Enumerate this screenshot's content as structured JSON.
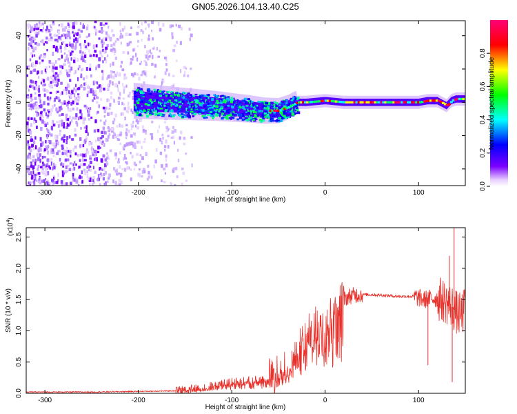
{
  "title": "GN05.2026.104.13.40.C25",
  "chart_data": [
    {
      "type": "heatmap",
      "xlabel": "Height of straight line (km)",
      "ylabel": "Frequency (Hz)",
      "xlim": [
        -320,
        150
      ],
      "ylim": [
        -50,
        49
      ],
      "xticks": [
        -300,
        -200,
        -100,
        0,
        100
      ],
      "yticks": [
        -40,
        -20,
        0,
        20,
        40
      ],
      "colorbar": {
        "label": "Normalized spectral amplitude",
        "range": [
          0,
          1
        ],
        "ticks": [
          0.0,
          0.2,
          0.4,
          0.6,
          0.8
        ],
        "tick_labels": [
          "0.0",
          "0.2",
          "0.4",
          "0.6",
          "0.8"
        ],
        "colors": [
          "#ffffff",
          "#7b00ff",
          "#0000ff",
          "#00ffff",
          "#00ff00",
          "#ffff00",
          "#ff0000",
          "#ff00ff"
        ]
      },
      "ridge": {
        "x": [
          -205,
          -180,
          -150,
          -120,
          -100,
          -80,
          -65,
          -50,
          -40,
          -30,
          -20,
          0,
          20,
          40,
          60,
          80,
          100,
          110,
          120,
          130,
          135,
          140,
          150
        ],
        "y": [
          1,
          0,
          -1,
          -2,
          -3,
          -4,
          -5,
          -5,
          -3,
          0,
          0,
          1,
          0,
          0,
          0,
          0,
          0,
          1,
          1,
          -2,
          1,
          2,
          2
        ]
      },
      "noise_region_x": [
        -320,
        -150
      ]
    },
    {
      "type": "line",
      "xlabel": "Height of straight line (km)",
      "ylabel": "SNR (10 * v/v)",
      "y_multiplier_label": "(x10",
      "y_multiplier_exp": "4",
      "xlim": [
        -320,
        150
      ],
      "ylim": [
        0,
        2.65
      ],
      "xticks": [
        -300,
        -200,
        -100,
        0,
        100
      ],
      "yticks": [
        0.0,
        0.5,
        1.0,
        1.5,
        2.0,
        2.5
      ],
      "ytick_labels": [
        "0.0",
        "0.5",
        "1.0",
        "1.5",
        "2.0",
        "2.5"
      ],
      "color": "#e8302a",
      "series": [
        {
          "x": [
            -320,
            -250,
            -200,
            -160,
            -140,
            -120,
            -100,
            -80,
            -60,
            -45,
            -35,
            -25,
            -15,
            -5,
            5,
            15,
            25,
            35,
            45,
            60,
            80,
            95,
            105,
            115,
            125,
            135,
            140,
            145,
            150
          ],
          "y": [
            0.02,
            0.02,
            0.03,
            0.04,
            0.07,
            0.12,
            0.18,
            0.2,
            0.25,
            0.35,
            0.55,
            0.8,
            1.02,
            1.15,
            1.3,
            1.45,
            1.55,
            1.58,
            1.58,
            1.57,
            1.55,
            1.55,
            1.5,
            1.52,
            1.5,
            1.4,
            1.3,
            1.25,
            1.35
          ]
        }
      ],
      "spikes": [
        {
          "x": 110,
          "y": 0.45
        },
        {
          "x": 136,
          "y": 0.18
        },
        {
          "x": 138,
          "y": 2.65
        },
        {
          "x": 133,
          "y": 2.2
        }
      ]
    }
  ]
}
